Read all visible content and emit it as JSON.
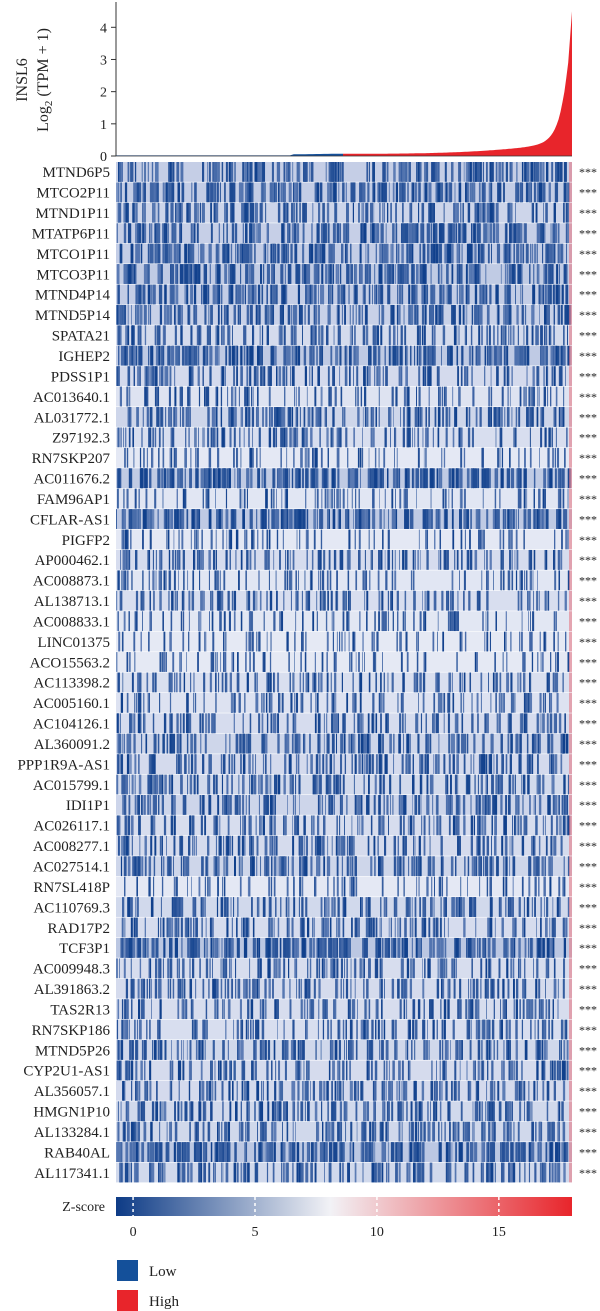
{
  "chart_data": [
    {
      "type": "bar",
      "ylabel_gene": "INSL6",
      "ylabel_unit": "Log2 (TPM + 1)",
      "ylabel_unit_base": "Log",
      "ylabel_unit_sub": "2",
      "ylabel_unit_rest": " (TPM + 1)",
      "yticks": [
        "0",
        "1",
        "2",
        "3",
        "4"
      ],
      "yrange": [
        0,
        4.6
      ],
      "groups": [
        "Low",
        "High"
      ],
      "low_values_range": [
        0.0,
        0.08
      ],
      "high_values_max": 4.5
    },
    {
      "type": "heatmap",
      "rows": [
        {
          "gene": "MTND6P5",
          "sig": "***"
        },
        {
          "gene": "MTCO2P11",
          "sig": "***"
        },
        {
          "gene": "MTND1P11",
          "sig": "***"
        },
        {
          "gene": "MTATP6P11",
          "sig": "***"
        },
        {
          "gene": "MTCO1P11",
          "sig": "***"
        },
        {
          "gene": "MTCO3P11",
          "sig": "***"
        },
        {
          "gene": "MTND4P14",
          "sig": "***"
        },
        {
          "gene": "MTND5P14",
          "sig": "***"
        },
        {
          "gene": "SPATA21",
          "sig": "***"
        },
        {
          "gene": "IGHEP2",
          "sig": "***"
        },
        {
          "gene": "PDSS1P1",
          "sig": "***"
        },
        {
          "gene": "AC013640.1",
          "sig": "***"
        },
        {
          "gene": "AL031772.1",
          "sig": "***"
        },
        {
          "gene": "Z97192.3",
          "sig": "***"
        },
        {
          "gene": "RN7SKP207",
          "sig": "***"
        },
        {
          "gene": "AC011676.2",
          "sig": "***"
        },
        {
          "gene": "FAM96AP1",
          "sig": "***"
        },
        {
          "gene": "CFLAR-AS1",
          "sig": "***"
        },
        {
          "gene": "PIGFP2",
          "sig": "***"
        },
        {
          "gene": "AP000462.1",
          "sig": "***"
        },
        {
          "gene": "AC008873.1",
          "sig": "***"
        },
        {
          "gene": "AL138713.1",
          "sig": "***"
        },
        {
          "gene": "AC008833.1",
          "sig": "***"
        },
        {
          "gene": "LINC01375",
          "sig": "***"
        },
        {
          "gene": "ACO15563.2",
          "sig": "***"
        },
        {
          "gene": "AC113398.2",
          "sig": "***"
        },
        {
          "gene": "AC005160.1",
          "sig": "***"
        },
        {
          "gene": "AC104126.1",
          "sig": "***"
        },
        {
          "gene": "AL360091.2",
          "sig": "***"
        },
        {
          "gene": "PPP1R9A-AS1",
          "sig": "***"
        },
        {
          "gene": "AC015799.1",
          "sig": "***"
        },
        {
          "gene": "IDI1P1",
          "sig": "***"
        },
        {
          "gene": "AC026117.1",
          "sig": "***"
        },
        {
          "gene": "AC008277.1",
          "sig": "***"
        },
        {
          "gene": "AC027514.1",
          "sig": "***"
        },
        {
          "gene": "RN7SL418P",
          "sig": "***"
        },
        {
          "gene": "AC110769.3",
          "sig": "***"
        },
        {
          "gene": "RAD17P2",
          "sig": "***"
        },
        {
          "gene": "TCF3P1",
          "sig": "***"
        },
        {
          "gene": "AC009948.3",
          "sig": "***"
        },
        {
          "gene": "AL391863.2",
          "sig": "***"
        },
        {
          "gene": "TAS2R13",
          "sig": "***"
        },
        {
          "gene": "RN7SKP186",
          "sig": "***"
        },
        {
          "gene": "MTND5P26",
          "sig": "***"
        },
        {
          "gene": "CYP2U1-AS1",
          "sig": "***"
        },
        {
          "gene": "AL356057.1",
          "sig": "***"
        },
        {
          "gene": "HMGN1P10",
          "sig": "***"
        },
        {
          "gene": "AL133284.1",
          "sig": "***"
        },
        {
          "gene": "RAB40AL",
          "sig": "***"
        },
        {
          "gene": "AL117341.1",
          "sig": "***"
        }
      ],
      "colorbar": {
        "label": "Z-score",
        "ticks": [
          "0",
          "5",
          "10",
          "15"
        ],
        "range": [
          -0.7,
          18
        ],
        "colors": [
          "#0d3b86",
          "#f2f2f6",
          "#e8252b"
        ]
      }
    }
  ],
  "legend": [
    {
      "label": "Low",
      "color": "#14509a"
    },
    {
      "label": "High",
      "color": "#e8252b"
    }
  ],
  "colors": {
    "low": "#14509a",
    "high": "#e8252b",
    "dark_blue": "#0d3b86",
    "light": "#d7ddee"
  }
}
